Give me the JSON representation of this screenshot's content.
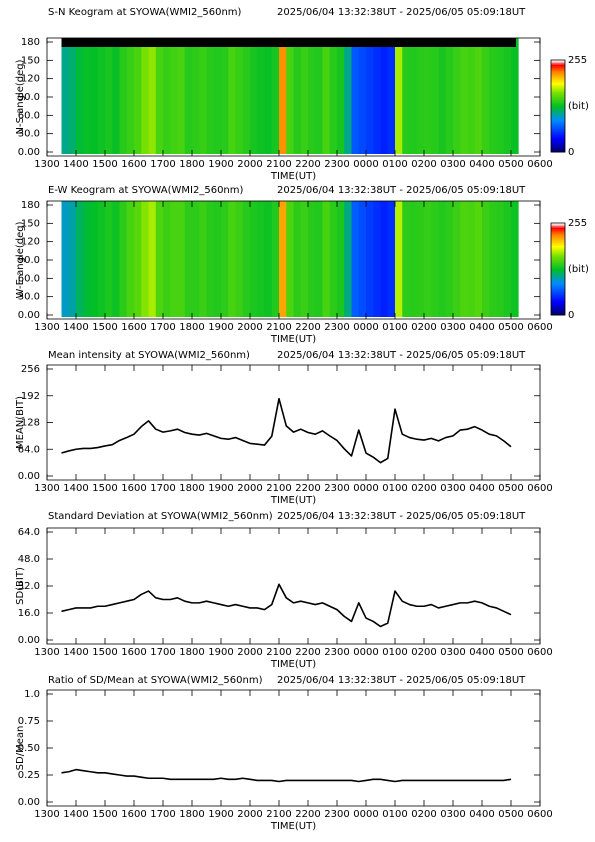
{
  "chart_data": [
    {
      "type": "keogram",
      "title": "S-N Keogram at SYOWA(WMI2_560nm)",
      "subtitle": "2025/06/04 13:32:38UT - 2025/06/05 05:09:18UT",
      "ylabel": "N-S angle(deg)",
      "xlabel": "TIME(UT)",
      "x": [
        13.5,
        13.75,
        14,
        14.25,
        14.5,
        14.75,
        15,
        15.25,
        15.5,
        15.75,
        16,
        16.25,
        16.5,
        16.75,
        17,
        17.25,
        17.5,
        17.75,
        18,
        18.25,
        18.5,
        18.75,
        19,
        19.25,
        19.5,
        19.75,
        20,
        20.25,
        20.5,
        20.75,
        21,
        21.25,
        21.5,
        21.75,
        22,
        22.25,
        22.5,
        22.75,
        23,
        23.25,
        23.5,
        23.75,
        24,
        24.25,
        24.5,
        24.75,
        25,
        25.25,
        25.5,
        25.75,
        26,
        26.25,
        26.5,
        26.75,
        27,
        27.25,
        27.5,
        27.75,
        28,
        28.25,
        28.5,
        28.75,
        29
      ],
      "values": [
        110,
        115,
        125,
        130,
        128,
        132,
        135,
        130,
        140,
        145,
        150,
        165,
        170,
        150,
        145,
        148,
        150,
        140,
        142,
        145,
        140,
        138,
        140,
        150,
        145,
        140,
        135,
        132,
        130,
        135,
        220,
        150,
        140,
        145,
        140,
        138,
        150,
        140,
        135,
        110,
        70,
        65,
        60,
        55,
        50,
        55,
        175,
        140,
        138,
        140,
        142,
        140,
        135,
        140,
        145,
        150,
        148,
        152,
        145,
        140,
        138,
        135,
        130
      ],
      "xlim": [
        13,
        30
      ],
      "xticks": [
        {
          "value": 13,
          "label": "1300"
        },
        {
          "value": 14,
          "label": "1400"
        },
        {
          "value": 15,
          "label": "1500"
        },
        {
          "value": 16,
          "label": "1600"
        },
        {
          "value": 17,
          "label": "1700"
        },
        {
          "value": 18,
          "label": "1800"
        },
        {
          "value": 19,
          "label": "1900"
        },
        {
          "value": 20,
          "label": "2000"
        },
        {
          "value": 21,
          "label": "2100"
        },
        {
          "value": 22,
          "label": "2200"
        },
        {
          "value": 23,
          "label": "2300"
        },
        {
          "value": 24,
          "label": "0000"
        },
        {
          "value": 25,
          "label": "0100"
        },
        {
          "value": 26,
          "label": "0200"
        },
        {
          "value": 27,
          "label": "0300"
        },
        {
          "value": 28,
          "label": "0400"
        },
        {
          "value": 29,
          "label": "0500"
        },
        {
          "value": 30,
          "label": "0600"
        }
      ],
      "ylim": [
        0,
        180
      ],
      "yticks": [
        {
          "value": 0,
          "label": "0.00"
        },
        {
          "value": 30,
          "label": "30.0"
        },
        {
          "value": 60,
          "label": "60.0"
        },
        {
          "value": 90,
          "label": "90.0"
        },
        120,
        150,
        180
      ],
      "colorbar": {
        "ylim": [
          0,
          255
        ],
        "yticks": [
          0,
          255
        ],
        "label": "(bit)"
      }
    },
    {
      "type": "keogram",
      "title": "E-W Keogram at SYOWA(WMI2_560nm)",
      "subtitle": "2025/06/04 13:32:38UT - 2025/06/05 05:09:18UT",
      "ylabel": "W-E angle(deg)",
      "xlabel": "TIME(UT)",
      "x": [
        13.5,
        13.75,
        14,
        14.25,
        14.5,
        14.75,
        15,
        15.25,
        15.5,
        15.75,
        16,
        16.25,
        16.5,
        16.75,
        17,
        17.25,
        17.5,
        17.75,
        18,
        18.25,
        18.5,
        18.75,
        19,
        19.25,
        19.5,
        19.75,
        20,
        20.25,
        20.5,
        20.75,
        21,
        21.25,
        21.5,
        21.75,
        22,
        22.25,
        22.5,
        22.75,
        23,
        23.25,
        23.5,
        23.75,
        24,
        24.25,
        24.5,
        24.75,
        25,
        25.25,
        25.5,
        25.75,
        26,
        26.25,
        26.5,
        26.75,
        27,
        27.25,
        27.5,
        27.75,
        28,
        28.25,
        28.5,
        28.75,
        29
      ],
      "values": [
        100,
        105,
        118,
        125,
        128,
        132,
        136,
        132,
        142,
        150,
        155,
        168,
        175,
        152,
        146,
        150,
        150,
        142,
        142,
        146,
        140,
        138,
        142,
        150,
        146,
        140,
        136,
        134,
        132,
        138,
        215,
        152,
        142,
        146,
        140,
        138,
        150,
        142,
        136,
        112,
        72,
        66,
        60,
        55,
        50,
        55,
        178,
        142,
        140,
        142,
        144,
        142,
        138,
        142,
        146,
        152,
        150,
        154,
        146,
        142,
        140,
        136,
        132
      ],
      "xlim": [
        13,
        30
      ],
      "xticks": [
        {
          "value": 13,
          "label": "1300"
        },
        {
          "value": 14,
          "label": "1400"
        },
        {
          "value": 15,
          "label": "1500"
        },
        {
          "value": 16,
          "label": "1600"
        },
        {
          "value": 17,
          "label": "1700"
        },
        {
          "value": 18,
          "label": "1800"
        },
        {
          "value": 19,
          "label": "1900"
        },
        {
          "value": 20,
          "label": "2000"
        },
        {
          "value": 21,
          "label": "2100"
        },
        {
          "value": 22,
          "label": "2200"
        },
        {
          "value": 23,
          "label": "2300"
        },
        {
          "value": 24,
          "label": "0000"
        },
        {
          "value": 25,
          "label": "0100"
        },
        {
          "value": 26,
          "label": "0200"
        },
        {
          "value": 27,
          "label": "0300"
        },
        {
          "value": 28,
          "label": "0400"
        },
        {
          "value": 29,
          "label": "0500"
        },
        {
          "value": 30,
          "label": "0600"
        }
      ],
      "ylim": [
        0,
        180
      ],
      "yticks": [
        {
          "value": 0,
          "label": "0.00"
        },
        {
          "value": 30,
          "label": "30.0"
        },
        {
          "value": 60,
          "label": "60.0"
        },
        {
          "value": 90,
          "label": "90.0"
        },
        120,
        150,
        180
      ],
      "colorbar": {
        "ylim": [
          0,
          255
        ],
        "yticks": [
          0,
          255
        ],
        "label": "(bit)"
      }
    },
    {
      "type": "line",
      "title": "Mean intensity at SYOWA(WMI2_560nm)",
      "subtitle": "2025/06/04 13:32:38UT - 2025/06/05 05:09:18UT",
      "ylabel": "MEAN(BIT)",
      "xlabel": "TIME(UT)",
      "color": "#000000",
      "x": [
        13.5,
        13.75,
        14,
        14.25,
        14.5,
        14.75,
        15,
        15.25,
        15.5,
        15.75,
        16,
        16.25,
        16.5,
        16.75,
        17,
        17.25,
        17.5,
        17.75,
        18,
        18.25,
        18.5,
        18.75,
        19,
        19.25,
        19.5,
        19.75,
        20,
        20.25,
        20.5,
        20.75,
        21,
        21.25,
        21.5,
        21.75,
        22,
        22.25,
        22.5,
        22.75,
        23,
        23.25,
        23.5,
        23.75,
        24,
        24.25,
        24.5,
        24.75,
        25,
        25.25,
        25.5,
        25.75,
        26,
        26.25,
        26.5,
        26.75,
        27,
        27.25,
        27.5,
        27.75,
        28,
        28.25,
        28.5,
        28.75,
        29
      ],
      "values": [
        55,
        60,
        64,
        66,
        66,
        68,
        72,
        75,
        85,
        92,
        100,
        118,
        132,
        112,
        105,
        108,
        112,
        104,
        100,
        98,
        102,
        96,
        90,
        88,
        92,
        85,
        78,
        76,
        74,
        95,
        185,
        120,
        105,
        112,
        104,
        100,
        108,
        96,
        85,
        65,
        48,
        110,
        55,
        45,
        32,
        42,
        160,
        100,
        92,
        88,
        86,
        90,
        84,
        92,
        96,
        110,
        112,
        118,
        110,
        100,
        96,
        84,
        70
      ],
      "xlim": [
        13,
        30
      ],
      "xticks": [
        {
          "value": 13,
          "label": "1300"
        },
        {
          "value": 14,
          "label": "1400"
        },
        {
          "value": 15,
          "label": "1500"
        },
        {
          "value": 16,
          "label": "1600"
        },
        {
          "value": 17,
          "label": "1700"
        },
        {
          "value": 18,
          "label": "1800"
        },
        {
          "value": 19,
          "label": "1900"
        },
        {
          "value": 20,
          "label": "2000"
        },
        {
          "value": 21,
          "label": "2100"
        },
        {
          "value": 22,
          "label": "2200"
        },
        {
          "value": 23,
          "label": "2300"
        },
        {
          "value": 24,
          "label": "0000"
        },
        {
          "value": 25,
          "label": "0100"
        },
        {
          "value": 26,
          "label": "0200"
        },
        {
          "value": 27,
          "label": "0300"
        },
        {
          "value": 28,
          "label": "0400"
        },
        {
          "value": 29,
          "label": "0500"
        },
        {
          "value": 30,
          "label": "0600"
        }
      ],
      "ylim": [
        0,
        256
      ],
      "yticks": [
        {
          "value": 0,
          "label": "0.00"
        },
        {
          "value": 64,
          "label": "64.0"
        },
        128,
        192,
        256
      ]
    },
    {
      "type": "line",
      "title": "Standard Deviation at SYOWA(WMI2_560nm)",
      "subtitle": "2025/06/04 13:32:38UT - 2025/06/05 05:09:18UT",
      "ylabel": "SD(BIT)",
      "xlabel": "TIME(UT)",
      "color": "#000000",
      "x": [
        13.5,
        13.75,
        14,
        14.25,
        14.5,
        14.75,
        15,
        15.25,
        15.5,
        15.75,
        16,
        16.25,
        16.5,
        16.75,
        17,
        17.25,
        17.5,
        17.75,
        18,
        18.25,
        18.5,
        18.75,
        19,
        19.25,
        19.5,
        19.75,
        20,
        20.25,
        20.5,
        20.75,
        21,
        21.25,
        21.5,
        21.75,
        22,
        22.25,
        22.5,
        22.75,
        23,
        23.25,
        23.5,
        23.75,
        24,
        24.25,
        24.5,
        24.75,
        25,
        25.25,
        25.5,
        25.75,
        26,
        26.25,
        26.5,
        26.75,
        27,
        27.25,
        27.5,
        27.75,
        28,
        28.25,
        28.5,
        28.75,
        29
      ],
      "values": [
        17,
        18,
        19,
        19,
        19,
        20,
        20,
        21,
        22,
        23,
        24,
        27,
        29,
        25,
        24,
        24,
        25,
        23,
        22,
        22,
        23,
        22,
        21,
        20,
        21,
        20,
        19,
        19,
        18,
        21,
        33,
        25,
        22,
        23,
        22,
        21,
        22,
        20,
        18,
        14,
        11,
        22,
        13,
        11,
        8,
        10,
        29,
        23,
        21,
        20,
        20,
        21,
        19,
        20,
        21,
        22,
        22,
        23,
        22,
        20,
        19,
        17,
        15
      ],
      "xlim": [
        13,
        30
      ],
      "xticks": [
        {
          "value": 13,
          "label": "1300"
        },
        {
          "value": 14,
          "label": "1400"
        },
        {
          "value": 15,
          "label": "1500"
        },
        {
          "value": 16,
          "label": "1600"
        },
        {
          "value": 17,
          "label": "1700"
        },
        {
          "value": 18,
          "label": "1800"
        },
        {
          "value": 19,
          "label": "1900"
        },
        {
          "value": 20,
          "label": "2000"
        },
        {
          "value": 21,
          "label": "2100"
        },
        {
          "value": 22,
          "label": "2200"
        },
        {
          "value": 23,
          "label": "2300"
        },
        {
          "value": 24,
          "label": "0000"
        },
        {
          "value": 25,
          "label": "0100"
        },
        {
          "value": 26,
          "label": "0200"
        },
        {
          "value": 27,
          "label": "0300"
        },
        {
          "value": 28,
          "label": "0400"
        },
        {
          "value": 29,
          "label": "0500"
        },
        {
          "value": 30,
          "label": "0600"
        }
      ],
      "ylim": [
        0,
        64
      ],
      "yticks": [
        {
          "value": 0,
          "label": "0.00"
        },
        {
          "value": 16,
          "label": "16.0"
        },
        {
          "value": 32,
          "label": "32.0"
        },
        {
          "value": 48,
          "label": "48.0"
        },
        {
          "value": 64,
          "label": "64.0"
        }
      ]
    },
    {
      "type": "line",
      "title": "Ratio of SD/Mean at SYOWA(WMI2_560nm)",
      "subtitle": "2025/06/04 13:32:38UT - 2025/06/05 05:09:18UT",
      "ylabel": "SD/Mean",
      "xlabel": "TIME(UT)",
      "color": "#000000",
      "x": [
        13.5,
        13.75,
        14,
        14.25,
        14.5,
        14.75,
        15,
        15.25,
        15.5,
        15.75,
        16,
        16.25,
        16.5,
        16.75,
        17,
        17.25,
        17.5,
        17.75,
        18,
        18.25,
        18.5,
        18.75,
        19,
        19.25,
        19.5,
        19.75,
        20,
        20.25,
        20.5,
        20.75,
        21,
        21.25,
        21.5,
        21.75,
        22,
        22.25,
        22.5,
        22.75,
        23,
        23.25,
        23.5,
        23.75,
        24,
        24.25,
        24.5,
        24.75,
        25,
        25.25,
        25.5,
        25.75,
        26,
        26.25,
        26.5,
        26.75,
        27,
        27.25,
        27.5,
        27.75,
        28,
        28.25,
        28.5,
        28.75,
        29
      ],
      "values": [
        0.27,
        0.28,
        0.3,
        0.29,
        0.28,
        0.27,
        0.27,
        0.26,
        0.25,
        0.24,
        0.24,
        0.23,
        0.22,
        0.22,
        0.22,
        0.21,
        0.21,
        0.21,
        0.21,
        0.21,
        0.21,
        0.21,
        0.22,
        0.21,
        0.21,
        0.22,
        0.21,
        0.2,
        0.2,
        0.2,
        0.19,
        0.2,
        0.2,
        0.2,
        0.2,
        0.2,
        0.2,
        0.2,
        0.2,
        0.2,
        0.2,
        0.19,
        0.2,
        0.21,
        0.21,
        0.2,
        0.19,
        0.2,
        0.2,
        0.2,
        0.2,
        0.2,
        0.2,
        0.2,
        0.2,
        0.2,
        0.2,
        0.2,
        0.2,
        0.2,
        0.2,
        0.2,
        0.21
      ],
      "xlim": [
        13,
        30
      ],
      "xticks": [
        {
          "value": 13,
          "label": "1300"
        },
        {
          "value": 14,
          "label": "1400"
        },
        {
          "value": 15,
          "label": "1500"
        },
        {
          "value": 16,
          "label": "1600"
        },
        {
          "value": 17,
          "label": "1700"
        },
        {
          "value": 18,
          "label": "1800"
        },
        {
          "value": 19,
          "label": "1900"
        },
        {
          "value": 20,
          "label": "2000"
        },
        {
          "value": 21,
          "label": "2100"
        },
        {
          "value": 22,
          "label": "2200"
        },
        {
          "value": 23,
          "label": "2300"
        },
        {
          "value": 24,
          "label": "0000"
        },
        {
          "value": 25,
          "label": "0100"
        },
        {
          "value": 26,
          "label": "0200"
        },
        {
          "value": 27,
          "label": "0300"
        },
        {
          "value": 28,
          "label": "0400"
        },
        {
          "value": 29,
          "label": "0500"
        },
        {
          "value": 30,
          "label": "0600"
        }
      ],
      "ylim": [
        0,
        1
      ],
      "yticks": [
        {
          "value": 0,
          "label": "0.00"
        },
        0.25,
        {
          "value": 0.5,
          "label": "0.50"
        },
        0.75,
        {
          "value": 1,
          "label": "1.0"
        }
      ]
    }
  ]
}
